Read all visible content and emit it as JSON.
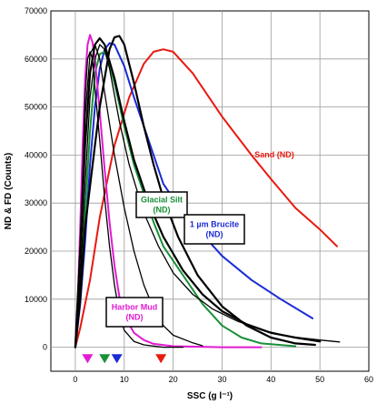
{
  "chart_data": {
    "type": "line",
    "xlabel": "SSC (g l⁻¹)",
    "ylabel": "ND & FD (Counts)",
    "xlim": [
      -5,
      60
    ],
    "ylim": [
      -5000,
      70000
    ],
    "xticks": [
      0,
      10,
      20,
      30,
      40,
      50,
      60
    ],
    "yticks": [
      0,
      10000,
      20000,
      30000,
      40000,
      50000,
      60000,
      70000
    ],
    "grid": true,
    "series": [
      {
        "name": "Sand (ND)",
        "color": "#e8190f",
        "points": [
          [
            0,
            0
          ],
          [
            1,
            4000
          ],
          [
            3,
            14000
          ],
          [
            5,
            27000
          ],
          [
            8,
            42000
          ],
          [
            11,
            52000
          ],
          [
            14,
            59000
          ],
          [
            16,
            61500
          ],
          [
            18,
            62000
          ],
          [
            20,
            61500
          ],
          [
            24,
            57000
          ],
          [
            30,
            48000
          ],
          [
            36,
            40000
          ],
          [
            40,
            35000
          ],
          [
            45,
            29000
          ],
          [
            50,
            24500
          ],
          [
            53.5,
            21000
          ]
        ]
      },
      {
        "name": "1 µm Brucite (ND)",
        "color": "#1a2ad6",
        "points": [
          [
            0,
            0
          ],
          [
            1,
            9000
          ],
          [
            2,
            22000
          ],
          [
            3,
            38000
          ],
          [
            4,
            50000
          ],
          [
            5,
            58000
          ],
          [
            6,
            62000
          ],
          [
            7,
            63300
          ],
          [
            8,
            63000
          ],
          [
            10,
            58500
          ],
          [
            12,
            52000
          ],
          [
            15,
            43000
          ],
          [
            18,
            34000
          ],
          [
            22,
            28000
          ],
          [
            26,
            23500
          ],
          [
            30,
            19000
          ],
          [
            36,
            14000
          ],
          [
            42,
            10000
          ],
          [
            48.5,
            6000
          ]
        ]
      },
      {
        "name": "Glacial Silt (ND)",
        "color": "#189038",
        "points": [
          [
            0,
            0
          ],
          [
            1,
            12000
          ],
          [
            2,
            28000
          ],
          [
            3,
            45000
          ],
          [
            4,
            57000
          ],
          [
            5,
            61000
          ],
          [
            6,
            61500
          ],
          [
            7,
            59000
          ],
          [
            8,
            55000
          ],
          [
            10,
            46000
          ],
          [
            12,
            38000
          ],
          [
            14,
            32000
          ],
          [
            16,
            26000
          ],
          [
            18,
            21000
          ],
          [
            22,
            15000
          ],
          [
            26,
            9000
          ],
          [
            30,
            4500
          ],
          [
            34,
            2000
          ],
          [
            38,
            800
          ],
          [
            45,
            200
          ]
        ]
      },
      {
        "name": "Harbor Mud (ND)",
        "color": "#e21ad2",
        "points": [
          [
            0,
            0
          ],
          [
            0.5,
            10000
          ],
          [
            1,
            25000
          ],
          [
            1.5,
            42000
          ],
          [
            2,
            56000
          ],
          [
            2.5,
            63000
          ],
          [
            3,
            65000
          ],
          [
            3.5,
            63500
          ],
          [
            4,
            60000
          ],
          [
            5,
            49000
          ],
          [
            6,
            37000
          ],
          [
            7,
            26000
          ],
          [
            8,
            17000
          ],
          [
            9,
            10500
          ],
          [
            10,
            6500
          ],
          [
            12,
            3000
          ],
          [
            14,
            1500
          ],
          [
            16,
            700
          ],
          [
            20,
            200
          ],
          [
            30,
            0
          ],
          [
            38,
            0
          ]
        ]
      },
      {
        "color": "#000000",
        "width": 2.2,
        "points": [
          [
            0,
            0
          ],
          [
            1,
            20000
          ],
          [
            2,
            42000
          ],
          [
            3,
            57000
          ],
          [
            4,
            63000
          ],
          [
            5,
            64300
          ],
          [
            6,
            63000
          ],
          [
            8,
            56000
          ],
          [
            10,
            47000
          ],
          [
            12,
            39000
          ],
          [
            15,
            30000
          ],
          [
            18,
            23000
          ],
          [
            22,
            16000
          ],
          [
            26,
            11000
          ],
          [
            30,
            7500
          ],
          [
            35,
            4800
          ],
          [
            40,
            3000
          ],
          [
            45,
            2000
          ],
          [
            50,
            1200
          ]
        ]
      },
      {
        "color": "#000000",
        "width": 2.2,
        "points": [
          [
            0,
            0
          ],
          [
            1,
            10000
          ],
          [
            2,
            25000
          ],
          [
            4,
            42000
          ],
          [
            5,
            50000
          ],
          [
            6,
            56000
          ],
          [
            7,
            62000
          ],
          [
            8,
            64500
          ],
          [
            9,
            64800
          ],
          [
            10,
            63000
          ],
          [
            12,
            55000
          ],
          [
            14,
            46000
          ],
          [
            16,
            38000
          ],
          [
            18,
            31000
          ],
          [
            21,
            23000
          ],
          [
            25,
            15000
          ],
          [
            30,
            8500
          ],
          [
            35,
            4500
          ],
          [
            40,
            2000
          ],
          [
            45,
            800
          ],
          [
            49,
            500
          ]
        ]
      },
      {
        "color": "#000000",
        "width": 1.3,
        "points": [
          [
            0,
            0
          ],
          [
            0.8,
            15000
          ],
          [
            1.5,
            35000
          ],
          [
            2,
            52000
          ],
          [
            2.5,
            60000
          ],
          [
            3,
            61500
          ],
          [
            3.5,
            60000
          ],
          [
            4,
            54000
          ],
          [
            5,
            43000
          ],
          [
            6,
            31000
          ],
          [
            7,
            21000
          ],
          [
            8,
            13000
          ],
          [
            9,
            7000
          ],
          [
            10,
            3500
          ],
          [
            12,
            1200
          ],
          [
            14,
            500
          ],
          [
            18,
            0
          ],
          [
            22,
            0
          ]
        ]
      },
      {
        "color": "#000000",
        "width": 1.3,
        "points": [
          [
            0,
            0
          ],
          [
            1,
            22000
          ],
          [
            2,
            48000
          ],
          [
            3,
            61000
          ],
          [
            4,
            63000
          ],
          [
            5,
            60000
          ],
          [
            6,
            53000
          ],
          [
            8,
            40000
          ],
          [
            10,
            29000
          ],
          [
            12,
            20000
          ],
          [
            14,
            13000
          ],
          [
            16,
            8000
          ],
          [
            18,
            4500
          ],
          [
            20,
            2500
          ],
          [
            24,
            900
          ],
          [
            26,
            300
          ]
        ]
      },
      {
        "color": "#000000",
        "width": 1.3,
        "points": [
          [
            0,
            0
          ],
          [
            1,
            14000
          ],
          [
            2,
            34000
          ],
          [
            3,
            52000
          ],
          [
            4,
            60000
          ],
          [
            5,
            63000
          ],
          [
            6,
            62000
          ],
          [
            7,
            58000
          ],
          [
            9,
            47000
          ],
          [
            11,
            38000
          ],
          [
            14,
            28000
          ],
          [
            17,
            21000
          ],
          [
            20,
            15500
          ],
          [
            24,
            11000
          ],
          [
            28,
            8000
          ],
          [
            33,
            5500
          ],
          [
            38,
            3600
          ],
          [
            44,
            2200
          ],
          [
            50,
            1500
          ],
          [
            54,
            1100
          ]
        ]
      }
    ],
    "annotations": [
      {
        "id": "sand",
        "label": "Sand (ND)",
        "color": "#e8190f",
        "boxed": false
      },
      {
        "id": "glacial",
        "label": "Glacial Silt\n(ND)",
        "color": "#189038",
        "boxed": true
      },
      {
        "id": "brucite",
        "label": "1 µm Brucite\n(ND)",
        "color": "#1a2ad6",
        "boxed": true
      },
      {
        "id": "harbor",
        "label": "Harbor Mud\n(ND)",
        "color": "#e21ad2",
        "boxed": true
      }
    ],
    "markers": [
      {
        "x": 2.5,
        "color": "#e21ad2"
      },
      {
        "x": 6,
        "color": "#189038"
      },
      {
        "x": 8.5,
        "color": "#1a2ad6"
      },
      {
        "x": 17.5,
        "color": "#e8190f"
      }
    ]
  }
}
